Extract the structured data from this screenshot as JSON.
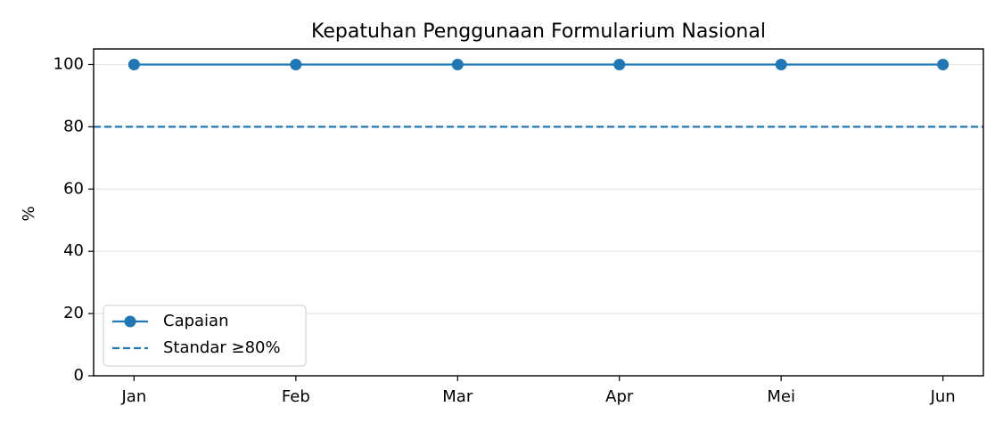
{
  "chart_data": {
    "type": "line",
    "title": "Kepatuhan Penggunaan Formularium Nasional",
    "y_label": "%",
    "categories": [
      "Jan",
      "Feb",
      "Mar",
      "Apr",
      "Mei",
      "Jun"
    ],
    "series": [
      {
        "name": "Capaian",
        "color": "#1f77b4",
        "marker": "circle",
        "values": [
          100,
          100,
          100,
          100,
          100,
          100
        ]
      }
    ],
    "reference_lines": [
      {
        "name": "Standar ≥80%",
        "value": 80,
        "color": "#1f77b4",
        "style": "dashed"
      }
    ],
    "ylim": [
      0,
      105
    ],
    "yticks": [
      0,
      20,
      40,
      60,
      80,
      100
    ],
    "grid": true,
    "legend": "lower left"
  }
}
